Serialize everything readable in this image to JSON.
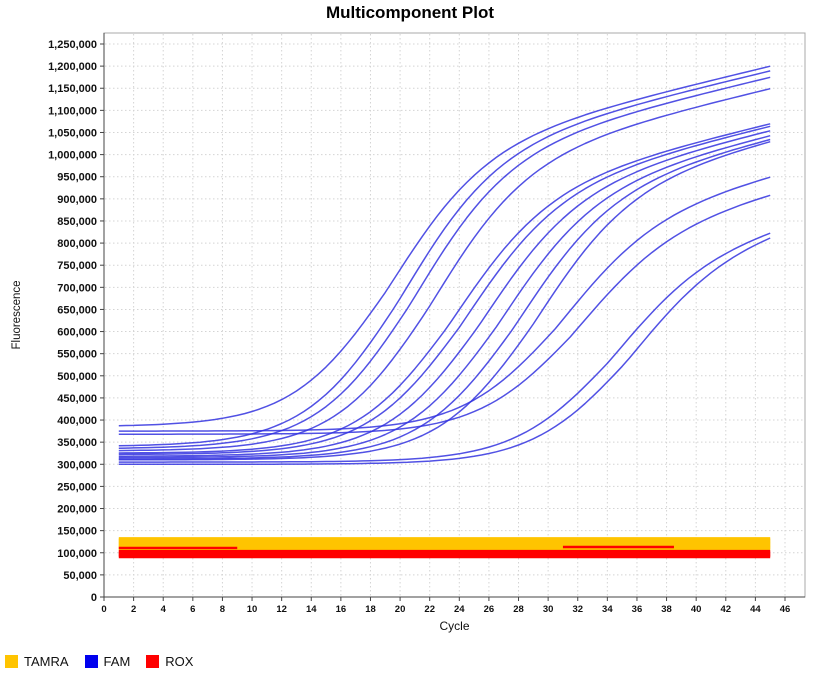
{
  "chart_data": {
    "type": "line",
    "title": "Multicomponent Plot",
    "xlabel": "Cycle",
    "ylabel": "Fluorescence",
    "xlim": [
      0,
      47.4
    ],
    "ylim": [
      0,
      1275000
    ],
    "x_ticks": [
      0,
      2,
      4,
      6,
      8,
      10,
      12,
      14,
      16,
      18,
      20,
      22,
      24,
      26,
      28,
      30,
      32,
      34,
      36,
      38,
      40,
      42,
      44,
      46
    ],
    "y_ticks": [
      0,
      50000,
      100000,
      150000,
      200000,
      250000,
      300000,
      350000,
      400000,
      450000,
      500000,
      550000,
      600000,
      650000,
      700000,
      750000,
      800000,
      850000,
      900000,
      950000,
      1000000,
      1050000,
      1100000,
      1150000,
      1200000,
      1250000
    ],
    "grid": "dashed",
    "cycles_measured": [
      1,
      45
    ],
    "legend": {
      "position": "bottom-left",
      "items": [
        {
          "label": "TAMRA",
          "color": "#FFC400"
        },
        {
          "label": "FAM",
          "color": "#0000EE"
        },
        {
          "label": "ROX",
          "color": "#FF0000"
        }
      ]
    },
    "fam": {
      "color": "#3232DF",
      "model": "fluorescence(c) = baseline + logistic((c-midpoint_cycle)/steepness) * (amplitude + late_slope*max(0, c-midpoint_cycle))",
      "series": [
        {
          "name": "fam-01",
          "baseline": 385000,
          "amplitude": 607000,
          "midpoint_cycle": 19.0,
          "steepness": 3.2,
          "late_slope": 8000,
          "end_value_cycle45": 1200000
        },
        {
          "name": "fam-02",
          "baseline": 340000,
          "amplitude": 648000,
          "midpoint_cycle": 19.8,
          "steepness": 3.2,
          "late_slope": 8000,
          "end_value_cycle45": 1190000
        },
        {
          "name": "fam-03",
          "baseline": 335000,
          "amplitude": 645000,
          "midpoint_cycle": 20.6,
          "steepness": 3.2,
          "late_slope": 8000,
          "end_value_cycle45": 1175000
        },
        {
          "name": "fam-04",
          "baseline": 330000,
          "amplitude": 634000,
          "midpoint_cycle": 21.8,
          "steepness": 3.2,
          "late_slope": 8000,
          "end_value_cycle45": 1150000
        },
        {
          "name": "fam-05",
          "baseline": 325000,
          "amplitude": 571000,
          "midpoint_cycle": 23.2,
          "steepness": 3.2,
          "late_slope": 8000,
          "end_value_cycle45": 1070000
        },
        {
          "name": "fam-06",
          "baseline": 322000,
          "amplitude": 575000,
          "midpoint_cycle": 24.0,
          "steepness": 3.2,
          "late_slope": 8000,
          "end_value_cycle45": 1065000
        },
        {
          "name": "fam-07",
          "baseline": 318000,
          "amplitude": 579000,
          "midpoint_cycle": 25.2,
          "steepness": 3.2,
          "late_slope": 8000,
          "end_value_cycle45": 1055000
        },
        {
          "name": "fam-08",
          "baseline": 315000,
          "amplitude": 581000,
          "midpoint_cycle": 26.4,
          "steepness": 3.2,
          "late_slope": 8000,
          "end_value_cycle45": 1045000
        },
        {
          "name": "fam-09",
          "baseline": 312000,
          "amplitude": 586000,
          "midpoint_cycle": 27.6,
          "steepness": 3.2,
          "late_slope": 8000,
          "end_value_cycle45": 1035000
        },
        {
          "name": "fam-10",
          "baseline": 310000,
          "amplitude": 594000,
          "midpoint_cycle": 28.8,
          "steepness": 3.2,
          "late_slope": 8000,
          "end_value_cycle45": 1030000
        },
        {
          "name": "fam-11",
          "baseline": 375000,
          "amplitude": 464000,
          "midpoint_cycle": 30.5,
          "steepness": 3.2,
          "late_slope": 8000,
          "end_value_cycle45": 950000
        },
        {
          "name": "fam-12",
          "baseline": 368000,
          "amplitude": 440000,
          "midpoint_cycle": 31.5,
          "steepness": 3.2,
          "late_slope": 8000,
          "end_value_cycle45": 910000
        },
        {
          "name": "fam-13",
          "baseline": 305000,
          "amplitude": 446000,
          "midpoint_cycle": 34.0,
          "steepness": 3.2,
          "late_slope": 8000,
          "end_value_cycle45": 825000
        },
        {
          "name": "fam-14",
          "baseline": 300000,
          "amplitude": 457000,
          "midpoint_cycle": 35.2,
          "steepness": 3.2,
          "late_slope": 8000,
          "end_value_cycle45": 815000
        }
      ]
    },
    "tamra": {
      "color": "#FFC400",
      "band_range": [
        106000,
        134000
      ],
      "series_values": [
        132000,
        129000,
        126000,
        123000,
        120000,
        117000,
        114000,
        111000,
        108000
      ]
    },
    "rox": {
      "color": "#FF0000",
      "band_range": [
        88000,
        104000
      ],
      "series_values": [
        103000,
        100000,
        97000,
        94000,
        91000
      ],
      "overlay_streaks": [
        {
          "value": 111000,
          "from_cycle": 1.0,
          "to_cycle": 9.0
        },
        {
          "value": 113000,
          "from_cycle": 31.0,
          "to_cycle": 38.5
        }
      ]
    }
  }
}
